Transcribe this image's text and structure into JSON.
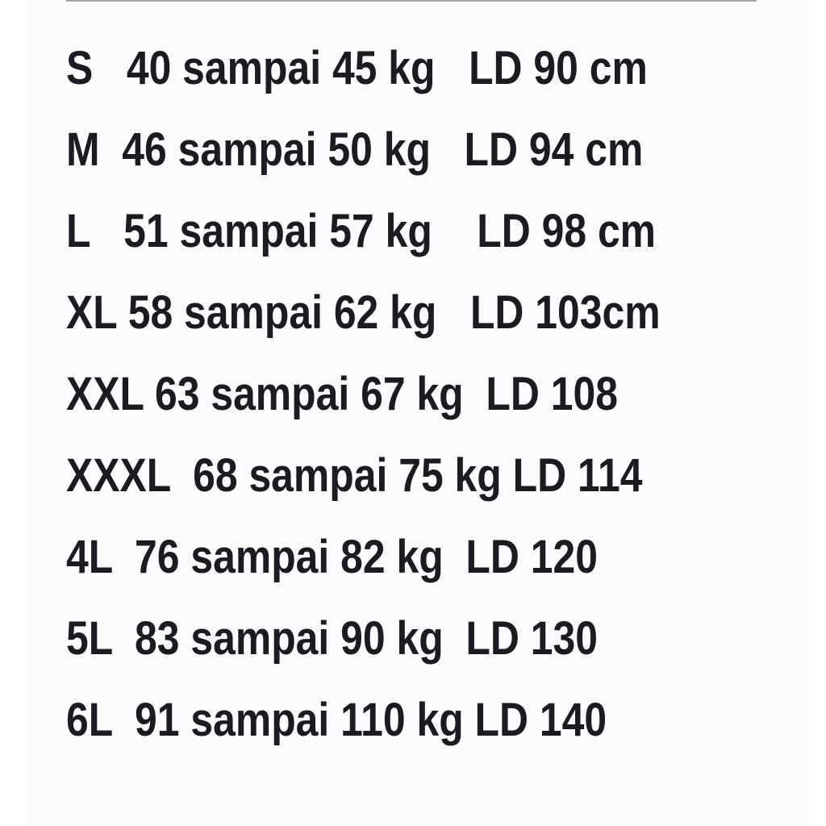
{
  "rows": [
    {
      "size": "S",
      "sep1": "   ",
      "weight": "40 sampai 45 kg",
      "sep2": "   ",
      "chest": "LD 90 cm"
    },
    {
      "size": "M",
      "sep1": "  ",
      "weight": "46 sampai 50 kg",
      "sep2": "   ",
      "chest": "LD 94 cm"
    },
    {
      "size": "L",
      "sep1": "   ",
      "weight": "51 sampai 57 kg",
      "sep2": "    ",
      "chest": "LD 98 cm"
    },
    {
      "size": "XL",
      "sep1": " ",
      "weight": "58 sampai 62 kg",
      "sep2": "   ",
      "chest": "LD 103cm"
    },
    {
      "size": "XXL",
      "sep1": " ",
      "weight": "63 sampai 67 kg",
      "sep2": "  ",
      "chest": "LD 108"
    },
    {
      "size": "XXXL",
      "sep1": "  ",
      "weight": "68 sampai 75 kg",
      "sep2": " ",
      "chest": "LD 114"
    },
    {
      "size": "4L",
      "sep1": "  ",
      "weight": "76 sampai 82 kg",
      "sep2": "  ",
      "chest": "LD 120"
    },
    {
      "size": "5L",
      "sep1": "  ",
      "weight": "83 sampai 90 kg",
      "sep2": "  ",
      "chest": "LD 130"
    },
    {
      "size": "6L",
      "sep1": "  ",
      "weight": "91 sampai 110 kg",
      "sep2": " ",
      "chest": "LD 140"
    }
  ]
}
